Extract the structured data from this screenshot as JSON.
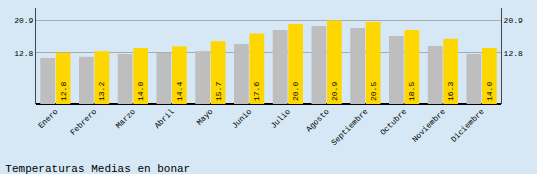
{
  "chart_data": {
    "type": "bar",
    "title": "Temperaturas Medias en bonar",
    "categories": [
      "Enero",
      "Febrero",
      "Marzo",
      "Abril",
      "Mayo",
      "Junio",
      "Julio",
      "Agosto",
      "Septiembre",
      "Octubre",
      "Noviembre",
      "Diciembre"
    ],
    "series": [
      {
        "color": "#BEBEBE",
        "values": [
          11.5,
          11.8,
          12.5,
          12.8,
          13.2,
          15.0,
          18.5,
          19.5,
          19.0,
          17.0,
          14.5,
          12.5
        ]
      },
      {
        "color": "#FFD700",
        "values": [
          12.8,
          13.2,
          14.0,
          14.4,
          15.7,
          17.6,
          20.0,
          20.9,
          20.5,
          18.5,
          16.3,
          14.0
        ],
        "value_labels": [
          "12.8",
          "13.2",
          "14.0",
          "14.4",
          "15.7",
          "17.6",
          "20.0",
          "20.9",
          "20.5",
          "18.5",
          "16.3",
          "14.0"
        ],
        "data_labels": true
      }
    ],
    "ylim": [
      0,
      24
    ],
    "yticks": [
      12.8,
      20.9
    ],
    "y2lim": [
      0,
      24
    ],
    "y2ticks": [
      12.8,
      20.9
    ],
    "grid": true,
    "background_color": "#D6E8F5"
  }
}
